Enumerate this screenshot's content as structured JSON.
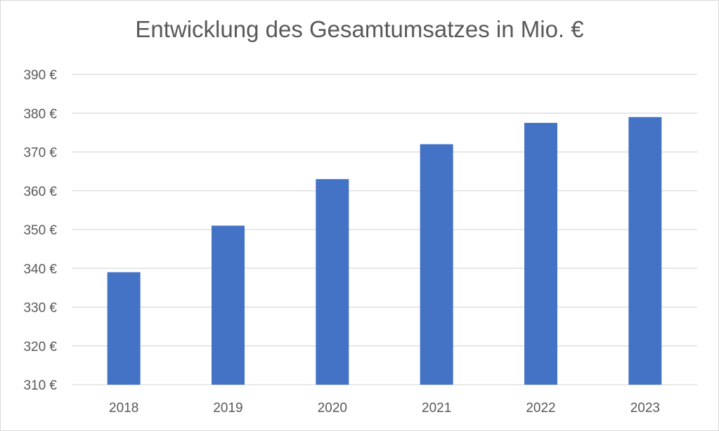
{
  "chart_data": {
    "type": "bar",
    "title": "Entwicklung des Gesamtumsatzes in Mio. €",
    "xlabel": "",
    "ylabel": "",
    "categories": [
      "2018",
      "2019",
      "2020",
      "2021",
      "2022",
      "2023"
    ],
    "values": [
      339,
      351,
      363,
      372,
      377.5,
      379
    ],
    "ylim": [
      310,
      390
    ],
    "yticks": [
      310,
      320,
      330,
      340,
      350,
      360,
      370,
      380,
      390
    ],
    "ytick_labels": [
      "310 €",
      "320 €",
      "330 €",
      "340 €",
      "350 €",
      "360 €",
      "370 €",
      "380 €",
      "390 €"
    ],
    "grid": true,
    "legend": "none",
    "colors": {
      "bar": "#4472c4",
      "grid": "#d9d9d9",
      "text": "#595959"
    }
  }
}
